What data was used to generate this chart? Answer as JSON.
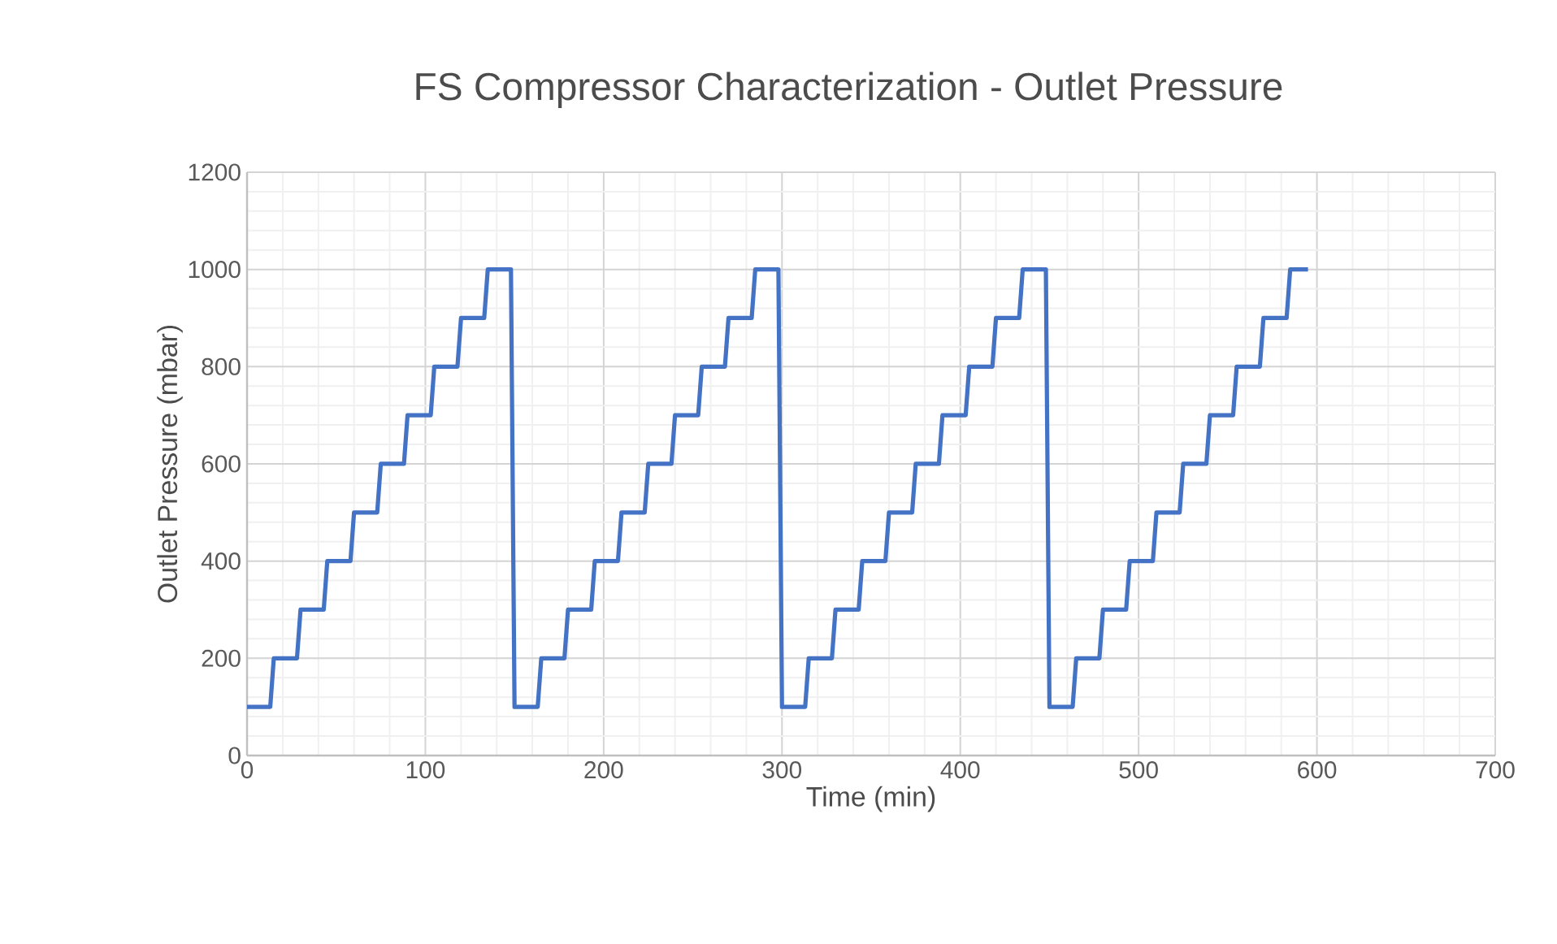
{
  "chart_data": {
    "type": "line",
    "title": "FS Compressor Characterization - Outlet Pressure",
    "xlabel": "Time (min)",
    "ylabel": "Outlet Pressure (mbar)",
    "x": [
      0,
      13,
      15,
      28,
      30,
      43,
      45,
      58,
      60,
      73,
      75,
      88,
      90,
      103,
      105,
      118,
      120,
      133,
      135,
      148,
      150,
      163,
      165,
      178,
      180,
      193,
      195,
      208,
      210,
      223,
      225,
      238,
      240,
      253,
      255,
      268,
      270,
      283,
      285,
      298,
      300,
      313,
      315,
      328,
      330,
      343,
      345,
      358,
      360,
      373,
      375,
      388,
      390,
      403,
      405,
      418,
      420,
      433,
      435,
      448,
      450,
      463,
      465,
      478,
      480,
      493,
      495,
      508,
      510,
      523,
      525,
      538,
      540,
      553,
      555,
      568,
      570,
      583,
      585,
      595
    ],
    "series": [
      {
        "color": "#4472c4",
        "values": [
          100,
          100,
          200,
          200,
          300,
          300,
          400,
          400,
          500,
          500,
          600,
          600,
          700,
          700,
          800,
          800,
          900,
          900,
          1000,
          1000,
          100,
          100,
          200,
          200,
          300,
          300,
          400,
          400,
          500,
          500,
          600,
          600,
          700,
          700,
          800,
          800,
          900,
          900,
          1000,
          1000,
          100,
          100,
          200,
          200,
          300,
          300,
          400,
          400,
          500,
          500,
          600,
          600,
          700,
          700,
          800,
          800,
          900,
          900,
          1000,
          1000,
          100,
          100,
          200,
          200,
          300,
          300,
          400,
          400,
          500,
          500,
          600,
          600,
          700,
          700,
          800,
          800,
          900,
          900,
          1000,
          1000
        ]
      }
    ],
    "xlim": [
      0,
      700
    ],
    "ylim": [
      0,
      1200
    ],
    "xticks": [
      0,
      100,
      200,
      300,
      400,
      500,
      600,
      700
    ],
    "yticks": [
      0,
      200,
      400,
      600,
      800,
      1000,
      1200
    ],
    "grid": true,
    "marker": "none",
    "line_style": "solid"
  }
}
